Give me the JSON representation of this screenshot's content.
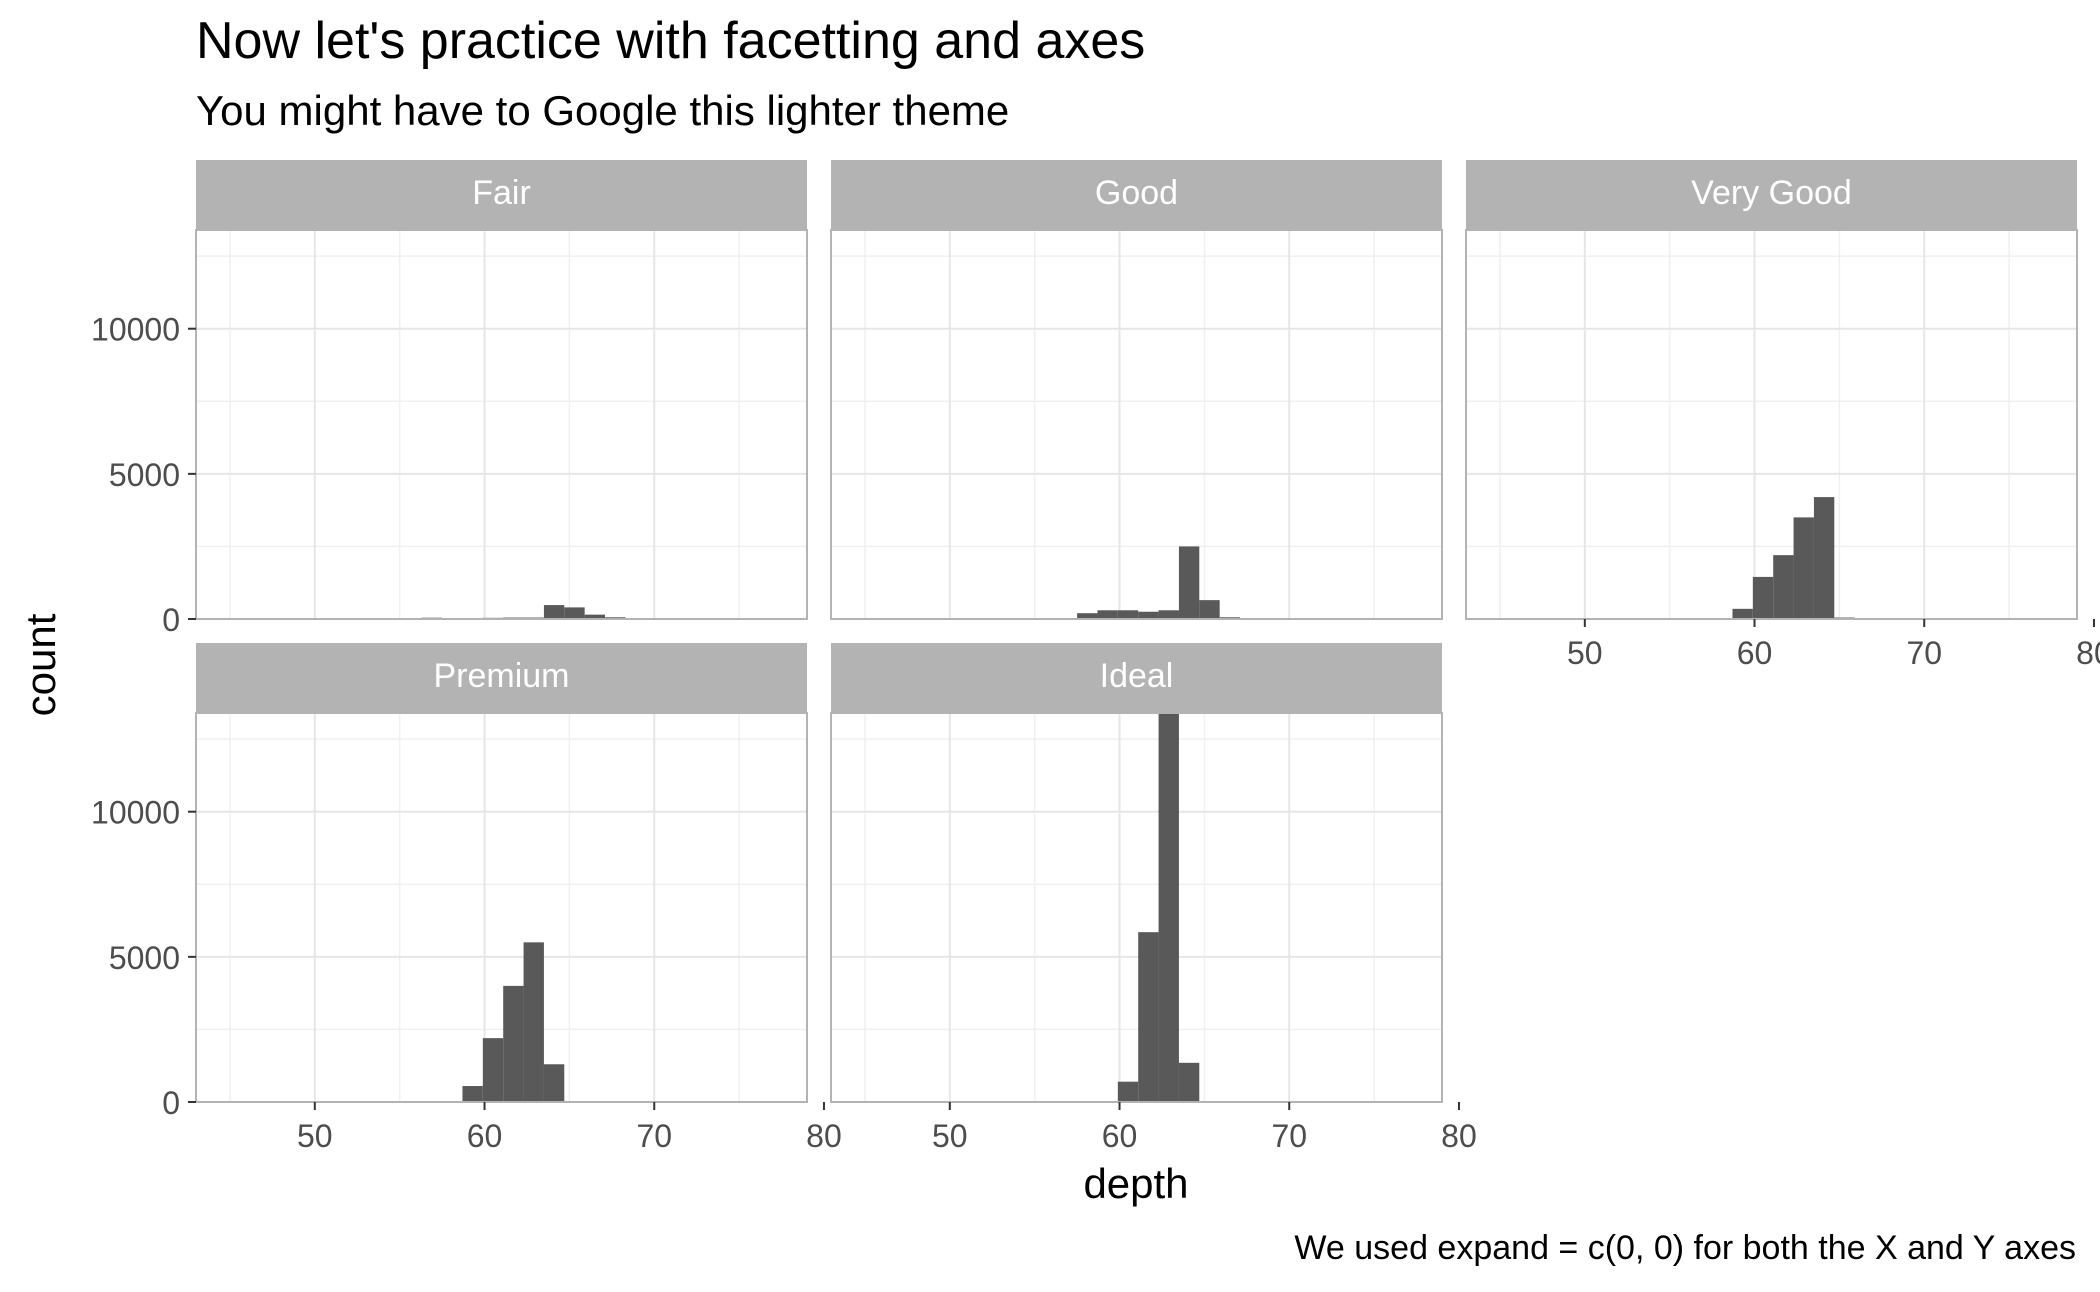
{
  "chart_data": {
    "type": "bar",
    "title": "Now let's practice with facetting and axes",
    "subtitle": "You might have to Google this lighter theme",
    "xlabel": "depth",
    "ylabel": "count",
    "caption": "We used expand = c(0, 0) for both the X and Y axes",
    "xlim": [
      43,
      79
    ],
    "ylim": [
      0,
      13400
    ],
    "x_ticks": [
      "50",
      "60",
      "70",
      "80"
    ],
    "y_ticks": [
      "0",
      "5000",
      "10000"
    ],
    "bin_width": 1.2,
    "bar_color": "#595959",
    "strip_color": "#b3b3b3",
    "panel_border_color": "#b3b3b3",
    "grid_color": "#e6e6e6",
    "grid": true,
    "bins": [
      43.7,
      44.9,
      46.1,
      47.3,
      48.5,
      49.7,
      50.9,
      52.1,
      53.3,
      54.5,
      55.7,
      56.9,
      58.1,
      59.3,
      60.5,
      61.7,
      62.9,
      64.1,
      65.3,
      66.5,
      67.7,
      68.9,
      70.1,
      71.3,
      72.5,
      73.7,
      74.9,
      76.1,
      77.3
    ],
    "series": [
      {
        "name": "Fair",
        "values": [
          5,
          5,
          5,
          5,
          5,
          10,
          10,
          15,
          15,
          20,
          30,
          45,
          30,
          25,
          40,
          50,
          50,
          480,
          400,
          150,
          60,
          30,
          20,
          15,
          10,
          5,
          5,
          5,
          5
        ]
      },
      {
        "name": "Good",
        "values": [
          0,
          0,
          0,
          0,
          0,
          0,
          0,
          0,
          0,
          0,
          0,
          10,
          200,
          300,
          300,
          250,
          300,
          2500,
          650,
          60,
          20,
          0,
          0,
          0,
          0,
          0,
          0,
          0,
          0
        ]
      },
      {
        "name": "Very Good",
        "values": [
          0,
          0,
          0,
          0,
          0,
          0,
          0,
          0,
          0,
          0,
          0,
          0,
          0,
          350,
          1450,
          2200,
          3500,
          4200,
          50,
          0,
          0,
          0,
          0,
          0,
          0,
          0,
          0,
          0,
          0
        ]
      },
      {
        "name": "Premium",
        "values": [
          0,
          0,
          0,
          0,
          0,
          0,
          0,
          0,
          0,
          0,
          0,
          0,
          0,
          550,
          2200,
          4000,
          5500,
          1300,
          0,
          0,
          0,
          0,
          0,
          0,
          0,
          0,
          0,
          0,
          0
        ]
      },
      {
        "name": "Ideal",
        "values": [
          0,
          0,
          0,
          0,
          0,
          0,
          0,
          0,
          0,
          0,
          0,
          0,
          0,
          0,
          700,
          5850,
          13400,
          1350,
          0,
          0,
          0,
          0,
          0,
          0,
          0,
          0,
          0,
          0,
          0
        ]
      }
    ]
  }
}
